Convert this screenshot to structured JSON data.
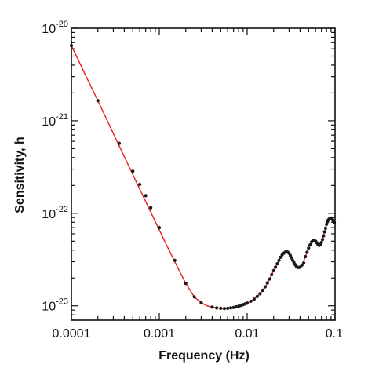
{
  "chart_data": {
    "type": "line",
    "title": "",
    "xlabel": "Frequency (Hz)",
    "ylabel": "Sensitivity, h",
    "xscale": "log",
    "yscale": "log",
    "xlim": [
      0.0001,
      0.1
    ],
    "ylim": [
      7e-24,
      1e-20
    ],
    "grid": false,
    "legend": "none",
    "x_ticks": [
      {
        "value": 0.0001,
        "label": "0.0001"
      },
      {
        "value": 0.001,
        "label": "0.001"
      },
      {
        "value": 0.01,
        "label": "0.01"
      },
      {
        "value": 0.1,
        "label": "0.1"
      }
    ],
    "y_ticks": [
      {
        "value": 1e-20,
        "base": "10",
        "exp": "-20"
      },
      {
        "value": 1e-21,
        "base": "10",
        "exp": "-21"
      },
      {
        "value": 1e-22,
        "base": "10",
        "exp": "-22"
      },
      {
        "value": 1e-23,
        "base": "10",
        "exp": "-23"
      }
    ],
    "series": [
      {
        "kind": "line",
        "color": "#e8201a",
        "x": [
          0.0001,
          0.00015,
          0.0002,
          0.0003,
          0.0004,
          0.0006,
          0.0008,
          0.001,
          0.0013,
          0.0016,
          0.002,
          0.0025,
          0.003,
          0.0035,
          0.004,
          0.0045,
          0.005,
          0.0055,
          0.006,
          0.007,
          0.008,
          0.009,
          0.01,
          0.012,
          0.014,
          0.016,
          0.018,
          0.02,
          0.022,
          0.024,
          0.026,
          0.028,
          0.03,
          0.032,
          0.034,
          0.036,
          0.038,
          0.04,
          0.043,
          0.046,
          0.05,
          0.054,
          0.058,
          0.062,
          0.065,
          0.068,
          0.072,
          0.076,
          0.08,
          0.085,
          0.09,
          0.095,
          0.1
        ],
        "y": [
          6.5e-21,
          2.9e-21,
          1.65e-21,
          7.3e-22,
          4.1e-22,
          1.82e-22,
          1.03e-22,
          6.6e-23,
          3.95e-23,
          2.65e-23,
          1.75e-23,
          1.25e-23,
          1.08e-23,
          1e-23,
          9.7e-24,
          9.5e-24,
          9.4e-24,
          9.35e-24,
          9.4e-24,
          9.6e-24,
          9.9e-24,
          1.03e-23,
          1.07e-23,
          1.18e-23,
          1.35e-23,
          1.6e-23,
          1.95e-23,
          2.4e-23,
          2.85e-23,
          3.35e-23,
          3.7e-23,
          3.85e-23,
          3.7e-23,
          3.3e-23,
          2.95e-23,
          2.7e-23,
          2.6e-23,
          2.62e-23,
          2.9e-23,
          3.4e-23,
          4.2e-23,
          4.9e-23,
          5.1e-23,
          4.8e-23,
          4.5e-23,
          4.6e-23,
          5.2e-23,
          6.3e-23,
          7.6e-23,
          8.6e-23,
          8.9e-23,
          8.3e-23,
          7.6e-23
        ]
      },
      {
        "kind": "points",
        "color": "#1a1a1a",
        "x": [
          0.0001,
          0.0002,
          0.00035,
          0.0005,
          0.0006,
          0.0007,
          0.0008,
          0.001,
          0.0015,
          0.002,
          0.0025,
          0.003,
          0.004,
          0.0045,
          0.005,
          0.0055,
          0.006,
          0.0065,
          0.007,
          0.0075,
          0.008,
          0.0085,
          0.009,
          0.0095,
          0.01,
          0.011,
          0.012,
          0.013,
          0.014,
          0.015,
          0.016,
          0.017,
          0.018,
          0.019,
          0.02,
          0.021,
          0.022,
          0.023,
          0.024,
          0.025,
          0.026,
          0.027,
          0.028,
          0.029,
          0.03,
          0.031,
          0.032,
          0.033,
          0.034,
          0.035,
          0.036,
          0.037,
          0.038,
          0.039,
          0.04,
          0.042,
          0.044,
          0.046,
          0.048,
          0.05,
          0.052,
          0.054,
          0.056,
          0.058,
          0.06,
          0.062,
          0.064,
          0.066,
          0.068,
          0.07,
          0.072,
          0.074,
          0.076,
          0.078,
          0.08,
          0.082,
          0.084,
          0.086,
          0.088,
          0.09,
          0.092,
          0.094,
          0.096,
          0.098
        ],
        "y": [
          6.5e-21,
          1.65e-21,
          5.7e-22,
          2.85e-22,
          2.05e-22,
          1.55e-22,
          1.15e-22,
          7e-23,
          3.1e-23,
          1.75e-23,
          1.25e-23,
          1.08e-23,
          9.7e-24,
          9.5e-24,
          9.4e-24,
          9.35e-24,
          9.4e-24,
          9.5e-24,
          9.6e-24,
          9.75e-24,
          9.9e-24,
          1.01e-23,
          1.03e-23,
          1.05e-23,
          1.07e-23,
          1.12e-23,
          1.18e-23,
          1.26e-23,
          1.35e-23,
          1.47e-23,
          1.6e-23,
          1.77e-23,
          1.95e-23,
          2.17e-23,
          2.4e-23,
          2.62e-23,
          2.85e-23,
          3.1e-23,
          3.35e-23,
          3.55e-23,
          3.7e-23,
          3.8e-23,
          3.85e-23,
          3.8e-23,
          3.7e-23,
          3.5e-23,
          3.3e-23,
          3.1e-23,
          2.95e-23,
          2.8e-23,
          2.7e-23,
          2.63e-23,
          2.6e-23,
          2.6e-23,
          2.62e-23,
          2.75e-23,
          2.9e-23,
          3.4e-23,
          3.8e-23,
          4.2e-23,
          4.55e-23,
          4.9e-23,
          5.05e-23,
          5.1e-23,
          5e-23,
          4.8e-23,
          4.6e-23,
          4.5e-23,
          4.6e-23,
          4.85e-23,
          5.2e-23,
          5.7e-23,
          6.3e-23,
          6.9e-23,
          7.6e-23,
          8.1e-23,
          8.5e-23,
          8.7e-23,
          8.8e-23,
          8.9e-23,
          8.8e-23,
          8.5e-23,
          8.2e-23,
          7.9e-23
        ]
      }
    ]
  }
}
